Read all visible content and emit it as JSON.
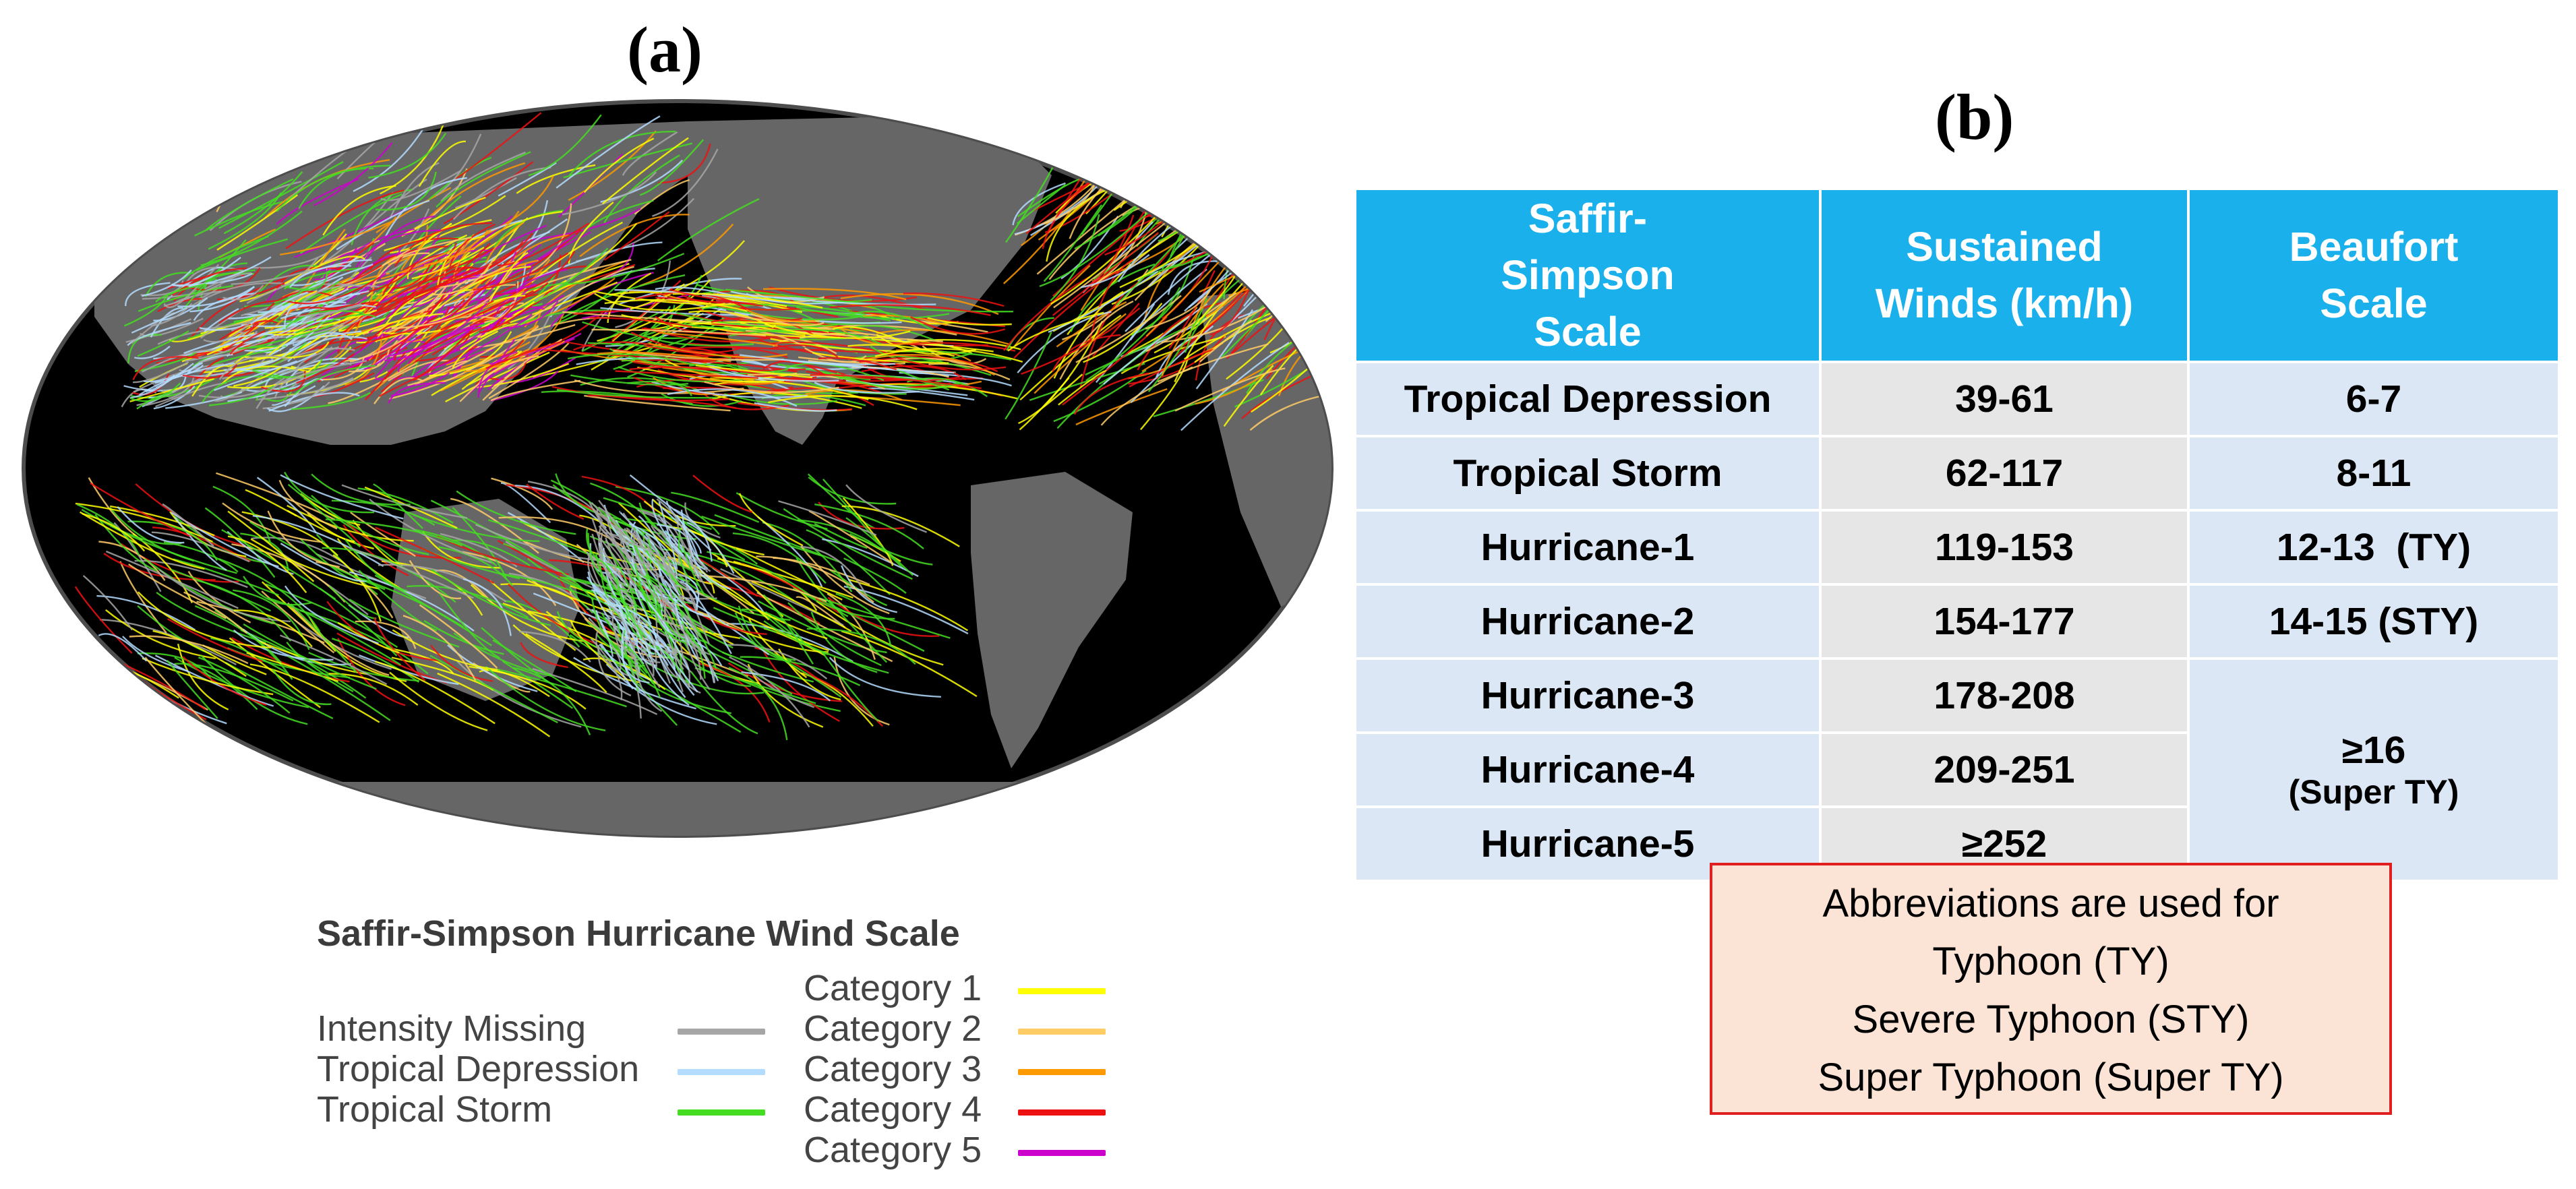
{
  "panel_a": {
    "label": "(a)",
    "legend": {
      "title": "Saffir-Simpson Hurricane Wind Scale",
      "items": [
        {
          "label": "Intensity Missing",
          "color": "#a6a6a6"
        },
        {
          "label": "Tropical Depression",
          "color": "#b3dcff"
        },
        {
          "label": "Tropical Storm",
          "color": "#44dd22"
        },
        {
          "label": "Category 1",
          "color": "#ffff00"
        },
        {
          "label": "Category 2",
          "color": "#ffcc66"
        },
        {
          "label": "Category 3",
          "color": "#ff9900"
        },
        {
          "label": "Category 4",
          "color": "#ee1111"
        },
        {
          "label": "Category 5",
          "color": "#cc00cc"
        }
      ]
    }
  },
  "panel_b": {
    "label": "(b)",
    "table": {
      "headers": [
        "Saffir-Simpson Scale",
        "Sustained Winds (km/h)",
        "Beaufort Scale"
      ],
      "rows": [
        {
          "scale": "Tropical Depression",
          "winds": "39-61",
          "beaufort": "6-7"
        },
        {
          "scale": "Tropical Storm",
          "winds": "62-117",
          "beaufort": "8-11"
        },
        {
          "scale": "Hurricane-1",
          "winds": "119-153",
          "beaufort": "12-13  (TY)"
        },
        {
          "scale": "Hurricane-2",
          "winds": "154-177",
          "beaufort": "14-15 (STY)"
        },
        {
          "scale": "Hurricane-3",
          "winds": "178-208"
        },
        {
          "scale": "Hurricane-4",
          "winds": "209-251"
        },
        {
          "scale": "Hurricane-5",
          "winds": "≥252"
        }
      ],
      "merged_beaufort": {
        "line1": "≥16",
        "line2": "(Super TY)"
      }
    },
    "abbreviations": [
      "Abbreviations are used for",
      "Typhoon (TY)",
      "Severe Typhoon (STY)",
      "Super Typhoon (Super TY)"
    ]
  },
  "map_colors": {
    "ocean": "#000000",
    "land": "#666666",
    "frame": "#555555"
  }
}
